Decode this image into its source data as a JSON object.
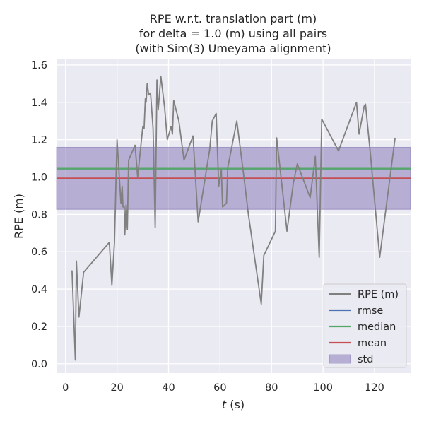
{
  "chart_data": {
    "type": "line",
    "title_lines": [
      "RPE w.r.t. translation part (m)",
      "for delta = 1.0 (m) using all pairs",
      "(with Sim(3) Umeyama alignment)"
    ],
    "xlabel_var": "t",
    "xlabel_unit": " (s)",
    "ylabel": "RPE (m)",
    "xlim": [
      -3.5,
      134
    ],
    "ylim": [
      -0.05,
      1.63
    ],
    "xticks": [
      0,
      20,
      40,
      60,
      80,
      100,
      120
    ],
    "yticks": [
      0.0,
      0.2,
      0.4,
      0.6,
      0.8,
      1.0,
      1.2,
      1.4,
      1.6
    ],
    "ytick_labels": [
      "0.0",
      "0.2",
      "0.4",
      "0.6",
      "0.8",
      "1.0",
      "1.2",
      "1.4",
      "1.6"
    ],
    "grid": true,
    "background": "#eaeaf2",
    "legend_position": "lower-right",
    "series": [
      {
        "name": "RPE (m)",
        "color": "#808080",
        "points": [
          [
            2.5,
            0.5
          ],
          [
            3.8,
            0.02
          ],
          [
            4.2,
            0.55
          ],
          [
            5.2,
            0.25
          ],
          [
            7,
            0.49
          ],
          [
            17,
            0.65
          ],
          [
            18,
            0.42
          ],
          [
            19,
            0.65
          ],
          [
            20,
            1.2
          ],
          [
            21.5,
            0.86
          ],
          [
            22,
            0.95
          ],
          [
            22.3,
            0.84
          ],
          [
            22.8,
            0.84
          ],
          [
            23,
            0.69
          ],
          [
            23.5,
            0.85
          ],
          [
            24,
            0.72
          ],
          [
            24.5,
            1.09
          ],
          [
            27,
            1.17
          ],
          [
            28,
            1.0
          ],
          [
            30,
            1.27
          ],
          [
            30.5,
            1.26
          ],
          [
            31,
            1.42
          ],
          [
            31.3,
            1.4
          ],
          [
            31.7,
            1.5
          ],
          [
            32.3,
            1.44
          ],
          [
            33,
            1.45
          ],
          [
            34,
            1.26
          ],
          [
            34.8,
            0.73
          ],
          [
            35.5,
            1.52
          ],
          [
            36,
            1.36
          ],
          [
            37,
            1.54
          ],
          [
            38.5,
            1.37
          ],
          [
            39.5,
            1.2
          ],
          [
            41,
            1.27
          ],
          [
            41.5,
            1.23
          ],
          [
            42,
            1.41
          ],
          [
            44,
            1.3
          ],
          [
            46,
            1.09
          ],
          [
            49.5,
            1.22
          ],
          [
            51.5,
            0.76
          ],
          [
            56,
            1.15
          ],
          [
            57,
            1.3
          ],
          [
            58.5,
            1.34
          ],
          [
            59.5,
            0.95
          ],
          [
            60.5,
            1.04
          ],
          [
            61,
            0.84
          ],
          [
            62.5,
            0.86
          ],
          [
            63,
            1.05
          ],
          [
            66.5,
            1.3
          ],
          [
            69,
            1.03
          ],
          [
            71,
            0.8
          ],
          [
            76,
            0.32
          ],
          [
            77,
            0.58
          ],
          [
            81.5,
            0.71
          ],
          [
            82,
            1.21
          ],
          [
            86,
            0.71
          ],
          [
            88.5,
            0.97
          ],
          [
            90,
            1.07
          ],
          [
            95,
            0.89
          ],
          [
            97,
            1.11
          ],
          [
            98.5,
            0.57
          ],
          [
            99.5,
            1.31
          ],
          [
            106,
            1.14
          ],
          [
            113,
            1.4
          ],
          [
            114,
            1.23
          ],
          [
            116,
            1.38
          ],
          [
            116.5,
            1.39
          ],
          [
            118.5,
            1.11
          ],
          [
            122,
            0.57
          ],
          [
            128,
            1.21
          ]
        ]
      },
      {
        "name": "rmse",
        "color": "#4c72b0",
        "value": 1.045
      },
      {
        "name": "median",
        "color": "#55a868",
        "value": 1.045
      },
      {
        "name": "mean",
        "color": "#c44e52",
        "value": 0.993
      },
      {
        "name": "std",
        "color": "#8172b3",
        "band": [
          0.827,
          1.159
        ]
      }
    ]
  }
}
